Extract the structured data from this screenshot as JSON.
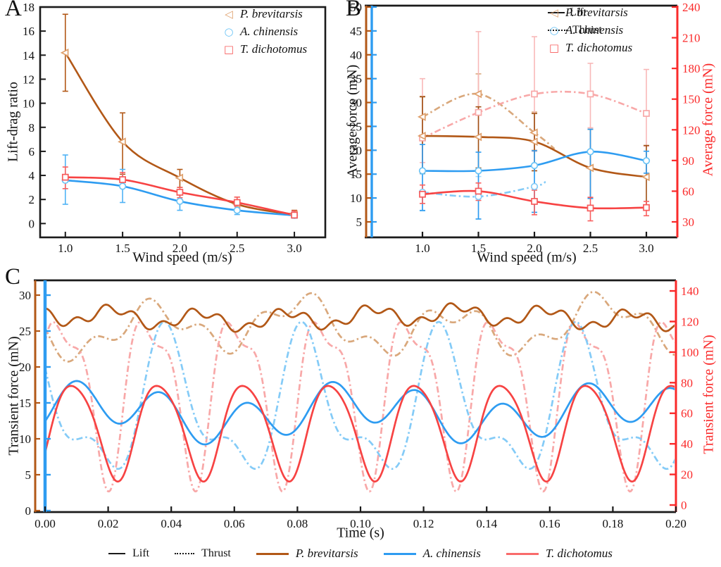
{
  "panel_labels": {
    "a": "A",
    "b": "B",
    "c": "C"
  },
  "colors": {
    "frame": "#1a1a1a",
    "brown": "#b25817",
    "tan": "#d9a87c",
    "blue": "#2e9cf1",
    "light_blue": "#84cbf7",
    "red": "#f74343",
    "pink": "#f8a8a8",
    "axis_red": "#fa2a2a",
    "text": "#111111",
    "bottom_legend_red": "#f96b6b"
  },
  "legend": {
    "line_types": [
      {
        "label": "Lift",
        "style": "solid"
      },
      {
        "label": "Thrust",
        "style": "dotted"
      }
    ],
    "species": [
      {
        "label": "P. brevitarsis",
        "marker_glyph": "◁",
        "marker_color": "#dfa06c",
        "line_color": "#b25817"
      },
      {
        "label": "A. chinensis",
        "marker_glyph": "○",
        "marker_color": "#6cc4f6",
        "line_color": "#2e9cf1"
      },
      {
        "label": "T. dichotomus",
        "marker_glyph": "□",
        "marker_color": "#f75b5b",
        "line_color": "#f96b6b"
      }
    ]
  },
  "chart_data": [
    {
      "id": "A",
      "type": "line",
      "xlabel": "Wind speed (m/s)",
      "ylabel": "Lift-drag ratio",
      "x": [
        1.0,
        1.5,
        2.0,
        2.5,
        3.0
      ],
      "xtick_labels": [
        "1.0",
        "1.5",
        "2.0",
        "2.5",
        "3.0"
      ],
      "yticks": [
        0,
        2,
        4,
        6,
        8,
        10,
        12,
        14,
        16,
        18
      ],
      "xlim": [
        0.78,
        3.27
      ],
      "ylim": [
        -1.15,
        18
      ],
      "legend_position": "top-right",
      "series": [
        {
          "name": "P. brevitarsis",
          "marker": "triangle-left",
          "line_color": "#b25817",
          "marker_color": "#dfa06c",
          "err_color": "#b25817",
          "values": [
            14.2,
            6.8,
            3.8,
            1.6,
            0.75
          ],
          "err_lo": [
            11.0,
            4.1,
            3.0,
            1.05,
            0.45
          ],
          "err_hi": [
            17.4,
            9.2,
            4.5,
            2.2,
            1.1
          ]
        },
        {
          "name": "A. chinensis",
          "marker": "circle",
          "line_color": "#2e9cf1",
          "marker_color": "#6cc4f6",
          "err_color": "#4fb3f5",
          "values": [
            3.6,
            3.1,
            1.85,
            1.1,
            0.68
          ],
          "err_lo": [
            1.6,
            1.75,
            1.1,
            0.75,
            0.45
          ],
          "err_hi": [
            5.7,
            4.5,
            2.5,
            1.5,
            0.95
          ]
        },
        {
          "name": "T. dichotomus",
          "marker": "square",
          "line_color": "#f74343",
          "marker_color": "#f75b5b",
          "err_color": "#f86060",
          "values": [
            3.85,
            3.65,
            2.6,
            1.75,
            0.7
          ],
          "err_lo": [
            2.9,
            3.2,
            2.15,
            1.4,
            0.5
          ],
          "err_hi": [
            4.7,
            4.25,
            3.0,
            2.2,
            1.05
          ]
        }
      ]
    },
    {
      "id": "B",
      "type": "line",
      "xlabel": "Wind speed (m/s)",
      "ylabel_left": "Average force (mN)",
      "ylabel_right": "Average force (mN)",
      "x": [
        1.0,
        1.5,
        2.0,
        2.5,
        3.0
      ],
      "xtick_labels": [
        "1.0",
        "1.5",
        "2.0",
        "2.5",
        "3.0"
      ],
      "yticks_left": [
        5,
        10,
        15,
        20,
        25,
        30,
        35,
        40,
        45,
        50
      ],
      "yticks_right": [
        30,
        60,
        90,
        120,
        150,
        180,
        210,
        240
      ],
      "series": [
        {
          "name": "P. brevitarsis thrust",
          "type_label": "Thrust",
          "axis": "left",
          "style": "dashdot",
          "marker": "triangle-left",
          "line_color": "#d9a87c",
          "marker_color": "#dfa06c",
          "err_color": "#d9a87c",
          "x": [
            1.0,
            1.5,
            2.0
          ],
          "tail": [
            2.18,
            20.3
          ],
          "values": [
            27.0,
            31.8,
            23.7
          ],
          "err_lo": [
            22.5,
            27.5,
            20.0
          ],
          "err_hi": [
            31.3,
            36.0,
            28.0
          ]
        },
        {
          "name": "A. chinensis thrust",
          "type_label": "Thrust",
          "axis": "left",
          "style": "dashdot",
          "marker": "circle",
          "line_color": "#84cbf7",
          "marker_color": "#84cbf7",
          "err_color": "#a8dbfa",
          "x": [
            1.0,
            1.5,
            2.0
          ],
          "tail": [
            2.1,
            13.4
          ],
          "values": [
            11.2,
            10.3,
            12.4
          ],
          "err_lo": [
            7.3,
            5.6,
            7.0
          ],
          "err_hi": [
            15.0,
            14.5,
            16.5
          ]
        },
        {
          "name": "T. dichotomus thrust",
          "type_label": "Thrust",
          "axis": "right",
          "style": "dashdot",
          "marker": "square",
          "line_color": "#f8a8a8",
          "marker_color": "#f8a8a8",
          "err_color": "#f8b8b8",
          "values": [
            112,
            137,
            155,
            155,
            136
          ],
          "err_lo": [
            88,
            113,
            99,
            122,
            104
          ],
          "err_hi": [
            170,
            216,
            211,
            185,
            179
          ]
        },
        {
          "name": "P. brevitarsis lift",
          "type_label": "Lift",
          "axis": "left",
          "style": "solid",
          "marker": "triangle-left",
          "line_color": "#b25817",
          "marker_color": "#dfa06c",
          "err_color": "#a05014",
          "values": [
            23.0,
            22.8,
            21.8,
            16.3,
            14.4
          ],
          "err_lo": [
            15.2,
            16.3,
            15.7,
            10.0,
            8.1
          ],
          "err_hi": [
            31.2,
            29.1,
            27.7,
            24.4,
            21.0
          ]
        },
        {
          "name": "A. chinensis lift",
          "type_label": "Lift",
          "axis": "left",
          "style": "solid",
          "marker": "circle",
          "line_color": "#2e9cf1",
          "marker_color": "#6cc4f6",
          "err_color": "#2e9cf1",
          "values": [
            15.7,
            15.7,
            16.8,
            19.7,
            17.8
          ],
          "err_lo": [
            7.4,
            5.6,
            7.0,
            9.9,
            15.2
          ],
          "err_hi": [
            21.2,
            19.6,
            19.9,
            24.4,
            19.8
          ]
        },
        {
          "name": "T. dichotomus lift",
          "type_label": "Lift",
          "axis": "right",
          "style": "solid",
          "marker": "square",
          "line_color": "#f74343",
          "marker_color": "#f75b5b",
          "err_color": "#f86060",
          "values": [
            57,
            60,
            50,
            43.5,
            44
          ],
          "err_lo": [
            48,
            51,
            37,
            31,
            36
          ],
          "err_hi": [
            66,
            68,
            61,
            54,
            50
          ]
        }
      ]
    },
    {
      "id": "C",
      "type": "line",
      "xlabel": "Time (s)",
      "ylabel_left": "Transient force (mN)",
      "ylabel_right": "Transient force (mN)",
      "xlim": [
        0,
        0.2
      ],
      "xticks": [
        0,
        0.02,
        0.04,
        0.06,
        0.08,
        0.1,
        0.12,
        0.14,
        0.16,
        0.18,
        0.2
      ],
      "xtick_labels": [
        "0.00",
        "0.02",
        "0.04",
        "0.06",
        "0.08",
        "0.10",
        "0.12",
        "0.14",
        "0.16",
        "0.18",
        "0.20"
      ],
      "yticks_left": [
        0,
        5,
        10,
        15,
        20,
        25,
        30
      ],
      "yticks_right": [
        0,
        20,
        40,
        60,
        80,
        100,
        120,
        140
      ],
      "series": [
        {
          "name": "P. brevitarsis thrust",
          "axis": "left",
          "style": "dashdot",
          "line_color": "#d9a87c",
          "model": {
            "mean": 25.6,
            "harmonics": [
              [
                2.9,
                21,
                3.4
              ],
              [
                1.5,
                57,
                2.4
              ],
              [
                0.8,
                9,
                3.8
              ]
            ]
          }
        },
        {
          "name": "T. dichotomus thrust",
          "axis": "right",
          "style": "dashdot",
          "line_color": "#f8a8a8",
          "model": {
            "mean": 76,
            "harmonics": [
              [
                50,
                36.3,
                0.25
              ],
              [
                18,
                72.6,
                1.6
              ]
            ]
          }
        },
        {
          "name": "A. chinensis thrust",
          "axis": "left",
          "style": "dashdot",
          "line_color": "#84cbf7",
          "model": {
            "mean": 14.0,
            "harmonics": [
              [
                8.5,
                23,
                2.2
              ],
              [
                4.0,
                46,
                3.4
              ]
            ]
          }
        },
        {
          "name": "P. brevitarsis lift",
          "axis": "left",
          "style": "solid",
          "line_color": "#b25817",
          "model": {
            "mean": 26.9,
            "harmonics": [
              [
                1.1,
                36.5,
                2.9
              ],
              [
                0.65,
                110,
                1.0
              ],
              [
                0.45,
                7.5,
                1.8
              ]
            ]
          }
        },
        {
          "name": "A. chinensis lift",
          "axis": "left",
          "style": "solid",
          "line_color": "#2e9cf1",
          "model": {
            "mean": 13.6,
            "harmonics": [
              [
                2.9,
                37,
                5.6
              ],
              [
                1.7,
                12,
                0.4
              ]
            ]
          }
        },
        {
          "name": "T. dichotomus lift",
          "axis": "right",
          "style": "solid",
          "line_color": "#f74343",
          "model": {
            "mean": 50,
            "harmonics": [
              [
                31,
                36.8,
                5.75
              ],
              [
                4,
                73.6,
                0
              ]
            ]
          }
        }
      ]
    }
  ]
}
